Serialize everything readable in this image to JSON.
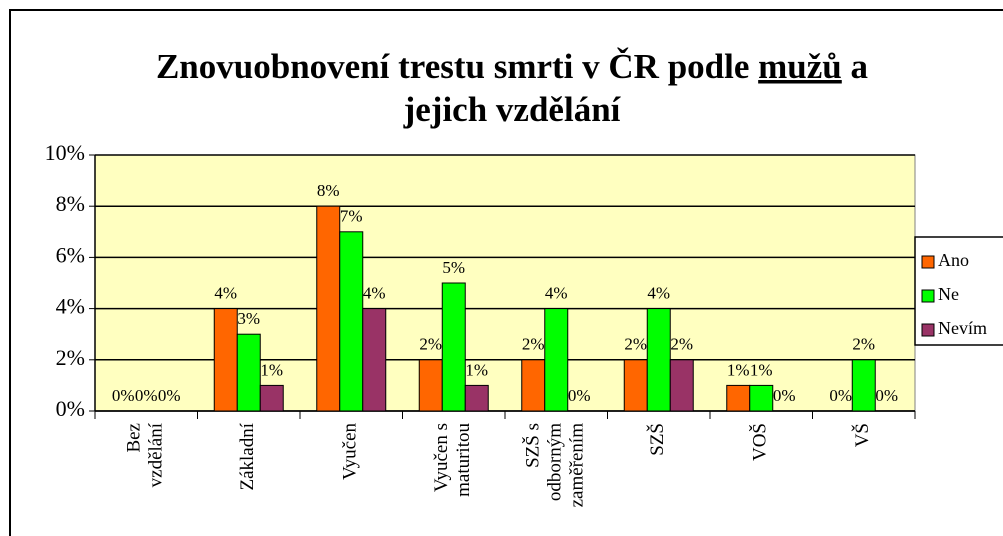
{
  "chart_data": {
    "type": "bar",
    "title": {
      "line1": "Znovuobnovení trestu smrti v ČR podle",
      "underlined": "mužů",
      "line1_end": "a",
      "line2": "jejich vzdělání"
    },
    "categories": [
      "Bez\nvzdělání",
      "Základní",
      "Vyučen",
      "Vyučen s\nmaturitou",
      "SZŠ s\nodborným\nzaměřením",
      "SZŠ",
      "VOŠ",
      "VŠ"
    ],
    "series": [
      {
        "name": "Ano",
        "color": "#ff6600",
        "values": [
          0,
          4,
          8,
          2,
          2,
          2,
          1,
          0
        ],
        "value_labels": [
          "0%",
          "4%",
          "8%",
          "2%",
          "2%",
          "2%",
          "1%",
          "0%"
        ]
      },
      {
        "name": "Ne",
        "color": "#00ff00",
        "values": [
          0,
          3,
          7,
          5,
          4,
          4,
          1,
          2
        ],
        "value_labels": [
          "0%",
          "3%",
          "7%",
          "5%",
          "4%",
          "4%",
          "1%",
          "2%"
        ]
      },
      {
        "name": "Nevím",
        "color": "#993366",
        "values": [
          0,
          1,
          4,
          1,
          0,
          2,
          0,
          0
        ],
        "value_labels": [
          "0%",
          "1%",
          "4%",
          "1%",
          "0%",
          "2%",
          "0%",
          "0%"
        ]
      }
    ],
    "ylim": [
      0,
      10
    ],
    "yticks": [
      {
        "value": 0,
        "label": "0%"
      },
      {
        "value": 2,
        "label": "2%"
      },
      {
        "value": 4,
        "label": "4%"
      },
      {
        "value": 6,
        "label": "6%"
      },
      {
        "value": 8,
        "label": "8%"
      },
      {
        "value": 10,
        "label": "10%"
      }
    ],
    "grid": true,
    "legend": "right",
    "plot_background": "#ffffc0"
  }
}
